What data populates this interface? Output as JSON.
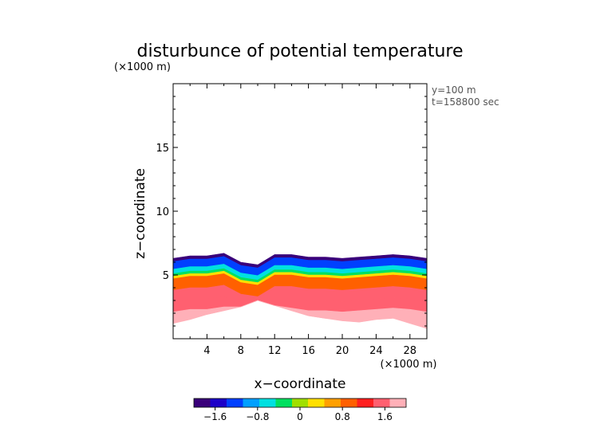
{
  "chart_data": {
    "type": "heatmap",
    "title": "disturbunce of potential temperature",
    "z_unit_label": "(×1000 m)",
    "x_unit_label": "(×1000 m)",
    "xlabel": "x−coordinate",
    "ylabel": "z−coordinate",
    "info": [
      "y=100  m",
      "t=158800 sec"
    ],
    "xlim": [
      0,
      30
    ],
    "ylim": [
      0,
      20
    ],
    "x_ticks": [
      4,
      8,
      12,
      16,
      20,
      24,
      28
    ],
    "x_tick_labels": [
      "4",
      "8",
      "12",
      "16",
      "20",
      "24",
      "28"
    ],
    "y_ticks": [
      5,
      10,
      15
    ],
    "y_tick_labels": [
      "5",
      "10",
      "15"
    ],
    "colorbar": {
      "range": [
        -2.0,
        2.0
      ],
      "ticks": [
        -1.6,
        -0.8,
        0,
        0.8,
        1.6
      ],
      "tick_labels": [
        "−1.6",
        "−0.8",
        "0",
        "0.8",
        "1.6"
      ],
      "colors": [
        "#3a007a",
        "#1c00c8",
        "#0040ff",
        "#00a0ff",
        "#00e0e0",
        "#00e060",
        "#a0e000",
        "#ffe000",
        "#ffa000",
        "#ff6000",
        "#ff2020",
        "#ff6070",
        "#ffb0b8"
      ]
    },
    "field": {
      "x": [
        0,
        2,
        4,
        6,
        8,
        10,
        12,
        14,
        16,
        18,
        20,
        22,
        24,
        26,
        28,
        30
      ],
      "top": [
        6.3,
        6.5,
        6.5,
        6.7,
        6.0,
        5.8,
        6.6,
        6.6,
        6.4,
        6.4,
        6.3,
        6.4,
        6.5,
        6.6,
        6.5,
        6.3
      ],
      "bottom": [
        1.2,
        1.5,
        1.9,
        2.2,
        2.5,
        3.0,
        2.6,
        2.2,
        1.8,
        1.6,
        1.4,
        1.3,
        1.5,
        1.6,
        1.2,
        0.8
      ],
      "bands": [
        {
          "value": -1.8,
          "thickness_km": 0.25
        },
        {
          "value": -1.2,
          "thickness_km": 0.6
        },
        {
          "value": -0.6,
          "thickness_km": 0.35
        },
        {
          "value": -0.2,
          "thickness_km": 0.2
        },
        {
          "value": 0.4,
          "thickness_km": 0.2
        },
        {
          "value": 1.0,
          "thickness_km": 0.9
        },
        {
          "value": 1.4,
          "thickness_km": 0.9
        },
        {
          "value": 1.6,
          "thickness_km": 0.8
        },
        {
          "value": 1.8,
          "thickness_km": 0.6
        },
        {
          "value": 2.0,
          "thickness_km": 10
        }
      ]
    }
  }
}
